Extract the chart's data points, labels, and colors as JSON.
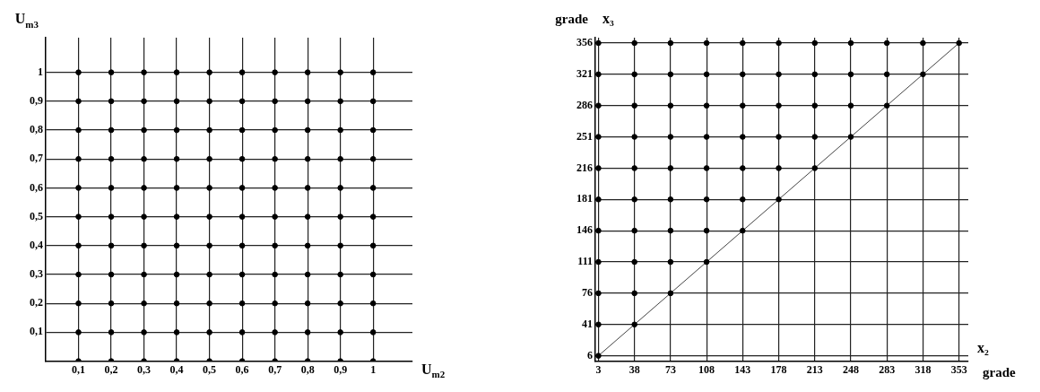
{
  "chart_data": [
    {
      "type": "scatter",
      "xlabel": "U$_{m2}$",
      "ylabel": "U$_{m3}$",
      "xlim": [
        0,
        1.12
      ],
      "ylim": [
        0,
        1.12
      ],
      "xticks": [
        {
          "value": 0.1,
          "label": "0,1"
        },
        {
          "value": 0.2,
          "label": "0,2"
        },
        {
          "value": 0.3,
          "label": "0,3"
        },
        {
          "value": 0.4,
          "label": "0,4"
        },
        {
          "value": 0.5,
          "label": "0,5"
        },
        {
          "value": 0.6,
          "label": "0,6"
        },
        {
          "value": 0.7,
          "label": "0,7"
        },
        {
          "value": 0.8,
          "label": "0,8"
        },
        {
          "value": 0.9,
          "label": "0,9"
        },
        1
      ],
      "yticks": [
        {
          "value": 0.1,
          "label": "0,1"
        },
        {
          "value": 0.2,
          "label": "0,2"
        },
        {
          "value": 0.3,
          "label": "0,3"
        },
        {
          "value": 0.4,
          "label": "0,4"
        },
        {
          "value": 0.5,
          "label": "0,5"
        },
        {
          "value": 0.6,
          "label": "0,6"
        },
        {
          "value": 0.7,
          "label": "0,7"
        },
        {
          "value": 0.8,
          "label": "0,8"
        },
        {
          "value": 0.9,
          "label": "0,9"
        },
        1
      ],
      "grid": true,
      "legend": false,
      "marker": "circle",
      "series": [
        {
          "color": "#000000",
          "x": [
            0.1,
            0.2,
            0.3,
            0.4,
            0.5,
            0.6,
            0.7,
            0.8,
            0.9,
            1,
            0.1,
            0.2,
            0.3,
            0.4,
            0.5,
            0.6,
            0.7,
            0.8,
            0.9,
            1,
            0.1,
            0.2,
            0.3,
            0.4,
            0.5,
            0.6,
            0.7,
            0.8,
            0.9,
            1,
            0.1,
            0.2,
            0.3,
            0.4,
            0.5,
            0.6,
            0.7,
            0.8,
            0.9,
            1,
            0.1,
            0.2,
            0.3,
            0.4,
            0.5,
            0.6,
            0.7,
            0.8,
            0.9,
            1,
            0.1,
            0.2,
            0.3,
            0.4,
            0.5,
            0.6,
            0.7,
            0.8,
            0.9,
            1,
            0.1,
            0.2,
            0.3,
            0.4,
            0.5,
            0.6,
            0.7,
            0.8,
            0.9,
            1,
            0.1,
            0.2,
            0.3,
            0.4,
            0.5,
            0.6,
            0.7,
            0.8,
            0.9,
            1,
            0.1,
            0.2,
            0.3,
            0.4,
            0.5,
            0.6,
            0.7,
            0.8,
            0.9,
            1,
            0.1,
            0.2,
            0.3,
            0.4,
            0.5,
            0.6,
            0.7,
            0.8,
            0.9,
            1,
            0.1,
            0.2,
            0.3,
            0.4,
            0.5,
            0.6,
            0.7,
            0.8,
            0.9,
            1
          ],
          "values": [
            0,
            0,
            0,
            0,
            0,
            0,
            0,
            0,
            0,
            0,
            0.1,
            0.1,
            0.1,
            0.1,
            0.1,
            0.1,
            0.1,
            0.1,
            0.1,
            0.1,
            0.2,
            0.2,
            0.2,
            0.2,
            0.2,
            0.2,
            0.2,
            0.2,
            0.2,
            0.2,
            0.3,
            0.3,
            0.3,
            0.3,
            0.3,
            0.3,
            0.3,
            0.3,
            0.3,
            0.3,
            0.4,
            0.4,
            0.4,
            0.4,
            0.4,
            0.4,
            0.4,
            0.4,
            0.4,
            0.4,
            0.5,
            0.5,
            0.5,
            0.5,
            0.5,
            0.5,
            0.5,
            0.5,
            0.5,
            0.5,
            0.6,
            0.6,
            0.6,
            0.6,
            0.6,
            0.6,
            0.6,
            0.6,
            0.6,
            0.6,
            0.7,
            0.7,
            0.7,
            0.7,
            0.7,
            0.7,
            0.7,
            0.7,
            0.7,
            0.7,
            0.8,
            0.8,
            0.8,
            0.8,
            0.8,
            0.8,
            0.8,
            0.8,
            0.8,
            0.8,
            0.9,
            0.9,
            0.9,
            0.9,
            0.9,
            0.9,
            0.9,
            0.9,
            0.9,
            0.9,
            1,
            1,
            1,
            1,
            1,
            1,
            1,
            1,
            1,
            1
          ]
        }
      ]
    },
    {
      "type": "scatter",
      "xlabel": "x₂",
      "ylabel": "x₃",
      "annotations": [
        "grade",
        "grade"
      ],
      "xlim": [
        0,
        362
      ],
      "ylim": [
        0,
        362
      ],
      "xticks": [
        3,
        38,
        73,
        108,
        143,
        178,
        213,
        248,
        283,
        318,
        353
      ],
      "yticks": [
        6,
        41,
        76,
        111,
        146,
        181,
        216,
        251,
        286,
        321,
        356
      ],
      "grid": true,
      "legend": false,
      "marker": "circle",
      "series": [
        {
          "color": "#000000",
          "x": [
            3,
            3,
            38,
            3,
            38,
            73,
            3,
            38,
            73,
            108,
            3,
            38,
            73,
            108,
            143,
            3,
            38,
            73,
            108,
            143,
            178,
            3,
            38,
            73,
            108,
            143,
            178,
            213,
            3,
            38,
            73,
            108,
            143,
            178,
            213,
            248,
            3,
            38,
            73,
            108,
            143,
            178,
            213,
            248,
            283,
            3,
            38,
            73,
            108,
            143,
            178,
            213,
            248,
            283,
            318,
            3,
            38,
            73,
            108,
            143,
            178,
            213,
            248,
            283,
            318,
            353
          ],
          "values": [
            6,
            41,
            41,
            76,
            76,
            76,
            111,
            111,
            111,
            111,
            146,
            146,
            146,
            146,
            146,
            181,
            181,
            181,
            181,
            181,
            181,
            216,
            216,
            216,
            216,
            216,
            216,
            216,
            251,
            251,
            251,
            251,
            251,
            251,
            251,
            251,
            286,
            286,
            286,
            286,
            286,
            286,
            286,
            286,
            286,
            321,
            321,
            321,
            321,
            321,
            321,
            321,
            321,
            321,
            321,
            356,
            356,
            356,
            356,
            356,
            356,
            356,
            356,
            356,
            356,
            356
          ]
        },
        {
          "type": "line",
          "color": "#444444",
          "marker": "none",
          "x": [
            3,
            353
          ],
          "values": [
            6,
            356
          ]
        }
      ]
    }
  ]
}
